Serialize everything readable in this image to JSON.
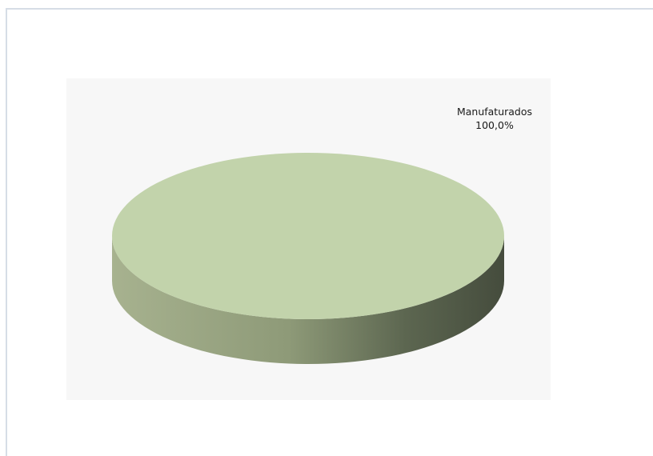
{
  "chart_data": {
    "type": "pie",
    "style": "3d",
    "slices": [
      {
        "label": "Manufaturados",
        "value": 100.0,
        "value_label": "100,0%",
        "color": "#c2d3ab"
      }
    ]
  }
}
